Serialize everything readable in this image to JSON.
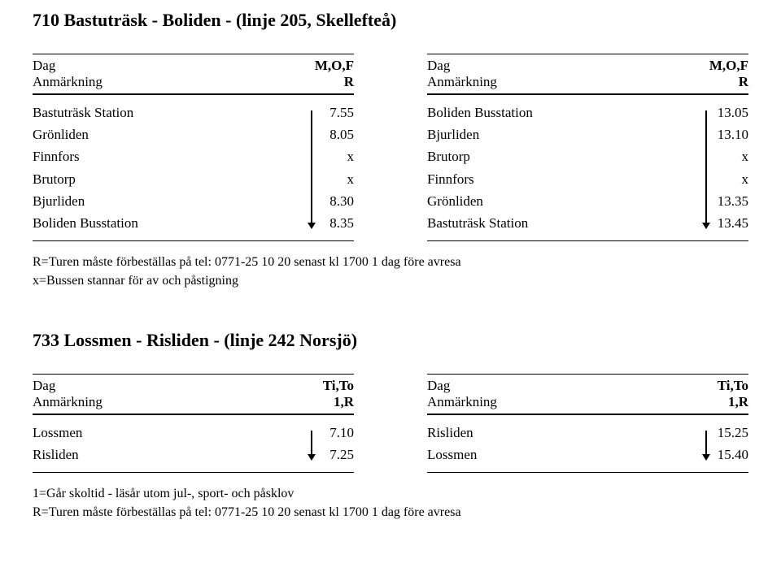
{
  "route710": {
    "title": "710   Bastuträsk - Boliden - (linje 205, Skellefteå)",
    "header": {
      "dag_label": "Dag",
      "anm_label": "Anmärkning",
      "col_days": "M,O,F",
      "col_note": "R"
    },
    "left_rows": [
      {
        "stop": "Bastuträsk Station",
        "val": "7.55"
      },
      {
        "stop": "Grönliden",
        "val": "8.05"
      },
      {
        "stop": "Finnfors",
        "val": "x"
      },
      {
        "stop": "Brutorp",
        "val": "x"
      },
      {
        "stop": "Bjurliden",
        "val": "8.30"
      },
      {
        "stop": "Boliden Busstation",
        "val": "8.35"
      }
    ],
    "right_rows": [
      {
        "stop": "Boliden Busstation",
        "val": "13.05"
      },
      {
        "stop": "Bjurliden",
        "val": "13.10"
      },
      {
        "stop": "Brutorp",
        "val": "x"
      },
      {
        "stop": "Finnfors",
        "val": "x"
      },
      {
        "stop": "Grönliden",
        "val": "13.35"
      },
      {
        "stop": "Bastuträsk Station",
        "val": "13.45"
      }
    ],
    "notes": [
      "R=Turen måste förbeställas på tel: 0771-25 10 20 senast kl 1700 1 dag före avresa",
      "x=Bussen stannar för av och påstigning"
    ]
  },
  "route733": {
    "title": "733   Lossmen - Risliden - (linje 242 Norsjö)",
    "header": {
      "dag_label": "Dag",
      "anm_label": "Anmärkning",
      "col_days": "Ti,To",
      "col_note": "1,R"
    },
    "left_rows": [
      {
        "stop": "Lossmen",
        "val": "7.10"
      },
      {
        "stop": "Risliden",
        "val": "7.25"
      }
    ],
    "right_rows": [
      {
        "stop": "Risliden",
        "val": "15.25"
      },
      {
        "stop": "Lossmen",
        "val": "15.40"
      }
    ],
    "notes": [
      "1=Går skoltid - läsår utom jul-, sport- och påsklov",
      "R=Turen måste förbeställas på tel: 0771-25 10 20 senast kl 1700 1 dag före avresa"
    ]
  }
}
